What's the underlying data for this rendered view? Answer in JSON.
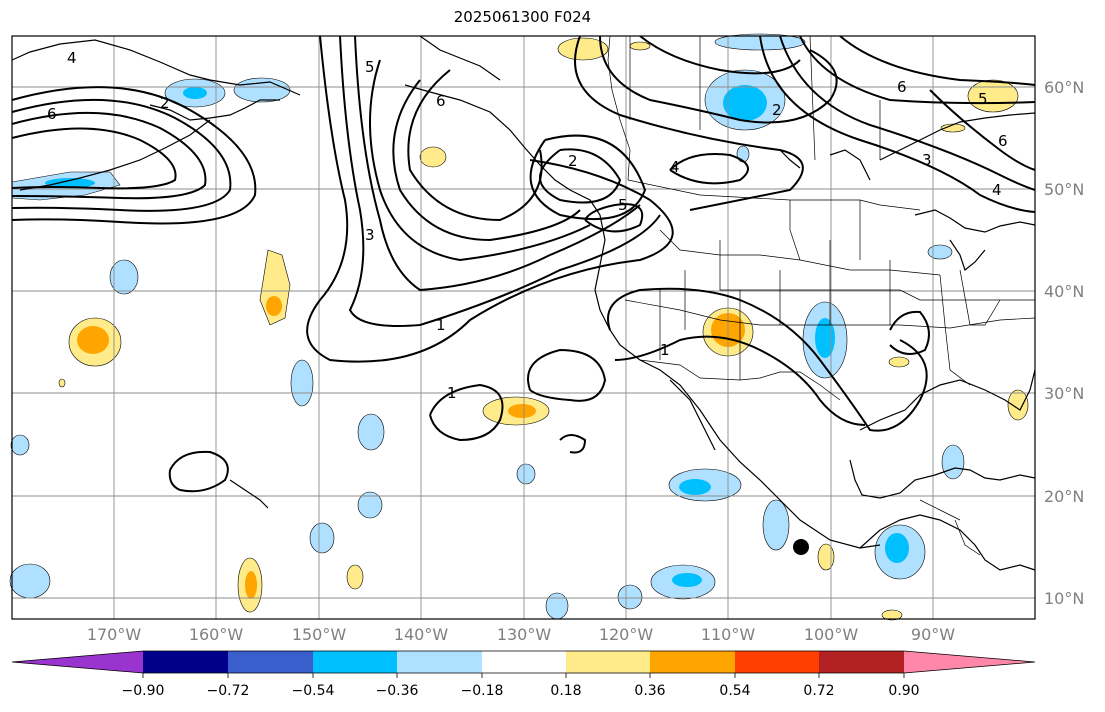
{
  "title": "2025061300 F024",
  "lat_labels": [
    "60°N",
    "50°N",
    "40°N",
    "30°N",
    "20°N",
    "10°N"
  ],
  "lon_labels": [
    "170°W",
    "160°W",
    "150°W",
    "140°W",
    "130°W",
    "120°W",
    "110°W",
    "100°W",
    "90°W"
  ],
  "colorbar": {
    "ticks": [
      "−0.90",
      "−0.72",
      "−0.54",
      "−0.36",
      "−0.18",
      "0.18",
      "0.36",
      "0.54",
      "0.72",
      "0.90"
    ],
    "colors": [
      "#9a34cf",
      "#00008b",
      "#3a5fcd",
      "#00bfff",
      "#afe0ff",
      "#ffffff",
      "#ffeb8a",
      "#ffa500",
      "#ff3f00",
      "#b22222",
      "#ff88aa"
    ]
  },
  "contour_labels": [
    "6",
    "4",
    "2",
    "1",
    "3",
    "5",
    "1",
    "6",
    "2",
    "4",
    "5",
    "6",
    "1",
    "2",
    "3",
    "4",
    "5",
    "6"
  ],
  "map_colors": {
    "contour": "#000000",
    "coast": "#000000",
    "grid": "#8c8c8c",
    "marker": "#000000"
  }
}
